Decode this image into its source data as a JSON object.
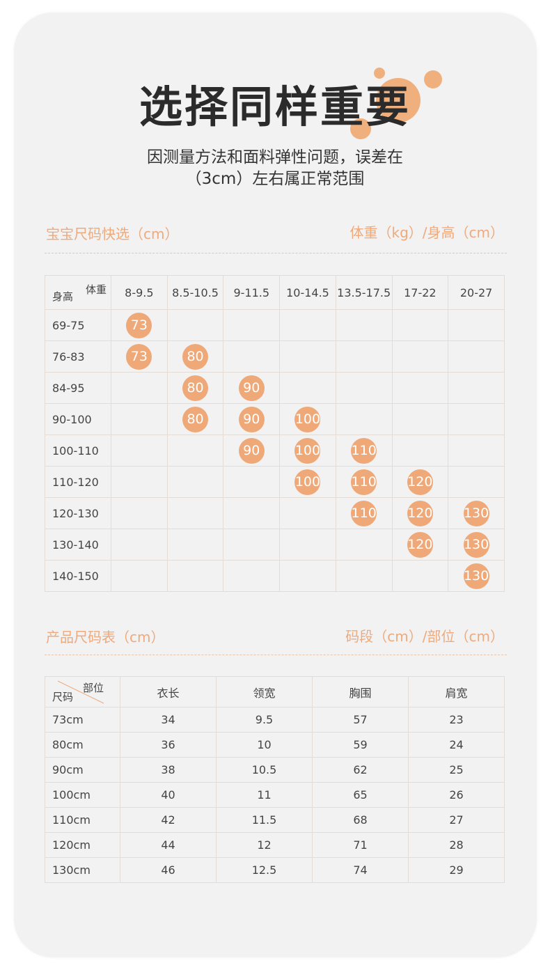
{
  "header": {
    "title": "选择同样重要",
    "note_line1": "因测量方法和面料弹性问题，误差在",
    "note_line2": "（3cm）左右属正常范围"
  },
  "quick_select": {
    "left_label": "宝宝尺码快选（cm）",
    "right_label": "体重（kg）/身高（cm）",
    "corner_weight": "体重",
    "corner_height": "身高",
    "weights": [
      "8-9.5",
      "8.5-10.5",
      "9-11.5",
      "10-14.5",
      "13.5-17.5",
      "17-22",
      "20-27"
    ],
    "rows": [
      {
        "height": "69-75",
        "cells": [
          "73",
          "",
          "",
          "",
          "",
          "",
          ""
        ]
      },
      {
        "height": "76-83",
        "cells": [
          "73",
          "80",
          "",
          "",
          "",
          "",
          ""
        ]
      },
      {
        "height": "84-95",
        "cells": [
          "",
          "80",
          "90",
          "",
          "",
          "",
          ""
        ]
      },
      {
        "height": "90-100",
        "cells": [
          "",
          "80",
          "90",
          "100",
          "",
          "",
          ""
        ]
      },
      {
        "height": "100-110",
        "cells": [
          "",
          "",
          "90",
          "100",
          "110",
          "",
          ""
        ]
      },
      {
        "height": "110-120",
        "cells": [
          "",
          "",
          "",
          "100",
          "110",
          "120",
          ""
        ]
      },
      {
        "height": "120-130",
        "cells": [
          "",
          "",
          "",
          "",
          "110",
          "120",
          "130"
        ]
      },
      {
        "height": "130-140",
        "cells": [
          "",
          "",
          "",
          "",
          "",
          "120",
          "130"
        ]
      },
      {
        "height": "140-150",
        "cells": [
          "",
          "",
          "",
          "",
          "",
          "",
          "130"
        ]
      }
    ]
  },
  "size_table": {
    "left_label": "产品尺码表（cm）",
    "right_label": "码段（cm）/部位（cm）",
    "corner_part": "部位",
    "corner_size": "尺码",
    "columns": [
      "衣长",
      "领宽",
      "胸围",
      "肩宽"
    ],
    "rows": [
      {
        "size": "73cm",
        "values": [
          "34",
          "9.5",
          "57",
          "23"
        ]
      },
      {
        "size": "80cm",
        "values": [
          "36",
          "10",
          "59",
          "24"
        ]
      },
      {
        "size": "90cm",
        "values": [
          "38",
          "10.5",
          "62",
          "25"
        ]
      },
      {
        "size": "100cm",
        "values": [
          "40",
          "11",
          "65",
          "26"
        ]
      },
      {
        "size": "110cm",
        "values": [
          "42",
          "11.5",
          "68",
          "27"
        ]
      },
      {
        "size": "120cm",
        "values": [
          "44",
          "12",
          "71",
          "28"
        ]
      },
      {
        "size": "130cm",
        "values": [
          "46",
          "12.5",
          "74",
          "29"
        ]
      }
    ]
  },
  "colors": {
    "accent": "#efa877",
    "section_text": "#eeaa7d",
    "card_bg": "#f2f2f2"
  }
}
